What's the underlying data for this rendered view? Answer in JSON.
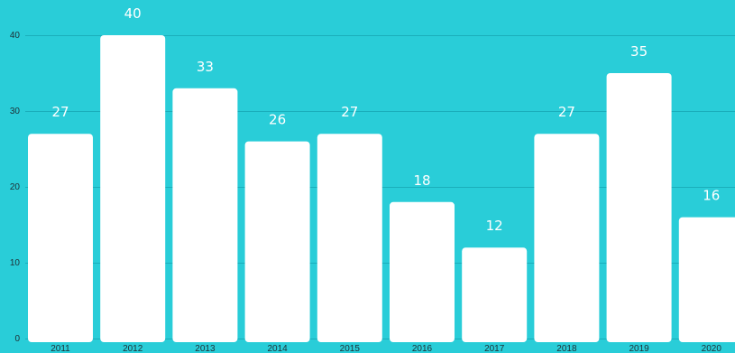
{
  "colors": {
    "background": "#29cdd8",
    "bar": "#ffffff",
    "gridline": "#1aaebb",
    "label": "#ffffff",
    "tick": "#1f2f35"
  },
  "chart_data": {
    "type": "bar",
    "title": "",
    "xlabel": "",
    "ylabel": "",
    "categories": [
      "2011",
      "2012",
      "2013",
      "2014",
      "2015",
      "2016",
      "2017",
      "2018",
      "2019",
      "2020"
    ],
    "values": [
      27,
      40,
      33,
      26,
      27,
      18,
      12,
      27,
      35,
      16
    ],
    "ylim": [
      0,
      40
    ],
    "yticks": [
      "0",
      "10",
      "20",
      "30",
      "40"
    ],
    "grid": true,
    "data_labels": true,
    "legend": "none"
  }
}
